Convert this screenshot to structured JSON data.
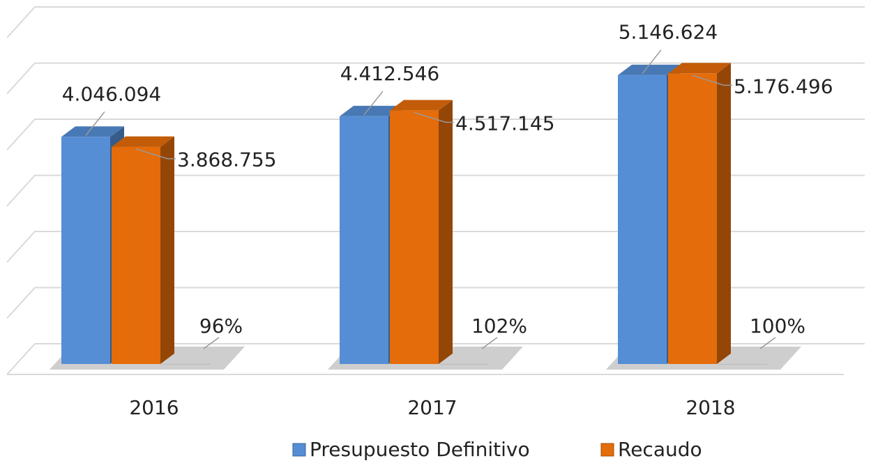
{
  "chart_data": {
    "type": "bar",
    "categories": [
      "2016",
      "2017",
      "2018"
    ],
    "series": [
      {
        "name": "Presupuesto Definitivo",
        "color": "#558ed5",
        "values": [
          4046094,
          4412546,
          5146624
        ],
        "value_labels": [
          "4.046.094",
          "4.412.546",
          "5.146.624"
        ]
      },
      {
        "name": "Recaudo",
        "color": "#e46c0a",
        "values": [
          3868755,
          4517145,
          5176496
        ],
        "value_labels": [
          "3.868.755",
          "4.517.145",
          "5.176.496"
        ]
      },
      {
        "color": "#a6a6a6",
        "values": [
          96,
          102,
          100
        ],
        "value_labels": [
          "96%",
          "102%",
          "100%"
        ]
      }
    ],
    "ylim": [
      0,
      6000000
    ],
    "yticks": [
      0,
      1000000,
      2000000,
      3000000,
      4000000,
      5000000,
      6000000
    ],
    "grid": true,
    "legend": "bottom"
  }
}
